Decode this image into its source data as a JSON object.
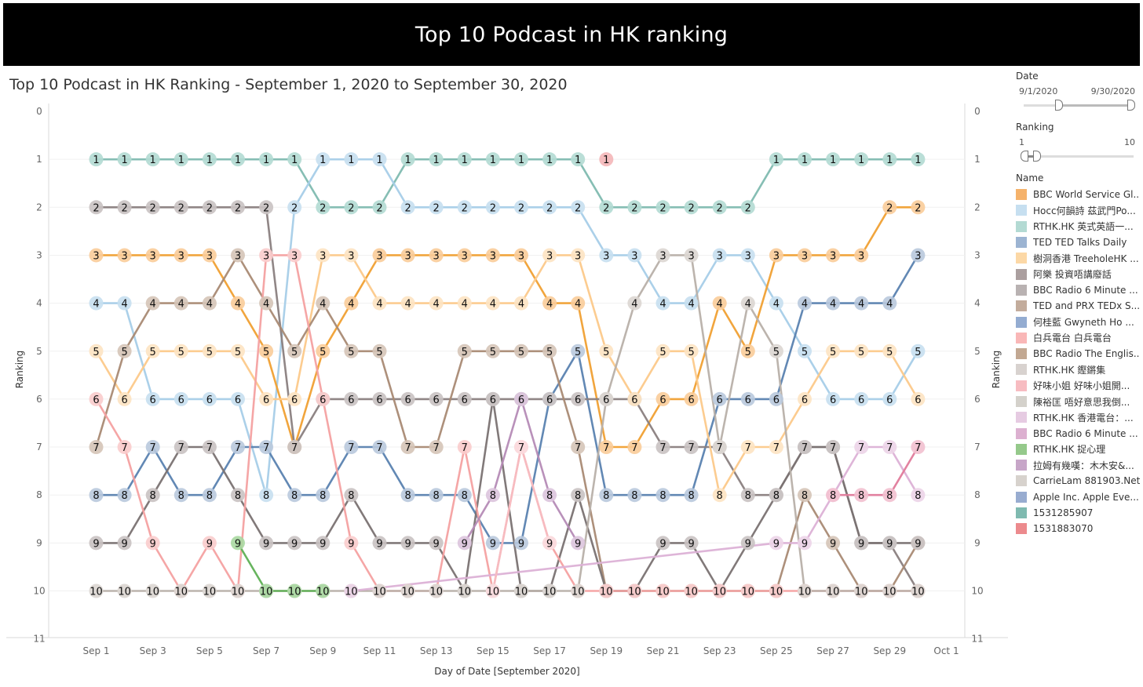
{
  "banner": {
    "title": "Top 10 Podcast in HK ranking"
  },
  "subtitle": "Top 10 Podcast in HK Ranking - September 1, 2020 to September 30, 2020",
  "filters": {
    "date": {
      "label": "Date",
      "start": "9/1/2020",
      "end": "9/30/2020"
    },
    "ranking": {
      "label": "Ranking",
      "min": "1",
      "max": "10"
    },
    "name_label": "Name"
  },
  "legend": [
    {
      "name": "BBC World Service Gl...",
      "color": "#f5b26b"
    },
    {
      "name": "Hocc何韻詩 茲武門Po...",
      "color": "#c6dff0"
    },
    {
      "name": "RTHK.HK 英式英語一...",
      "color": "#b3dad3"
    },
    {
      "name": "TED TED Talks Daily",
      "color": "#9cb4d2"
    },
    {
      "name": "樹洞香港 TreeholeHK ...",
      "color": "#fcd8a6"
    },
    {
      "name": "阿樂 投資唔講廢話",
      "color": "#ab9f9f"
    },
    {
      "name": "BBC Radio 6 Minute ...",
      "color": "#b9b2b2"
    },
    {
      "name": "TED and PRX TEDx S...",
      "color": "#c3ac9c"
    },
    {
      "name": "何桂藍 Gwyneth Ho ...",
      "color": "#94acd1"
    },
    {
      "name": "白兵電台 白兵電台",
      "color": "#f9b7b7"
    },
    {
      "name": "BBC Radio The Englis...",
      "color": "#c2a892"
    },
    {
      "name": "RTHK.HK 鏗鏘集",
      "color": "#d8d2cf"
    },
    {
      "name": "好味小姐 好味小姐開...",
      "color": "#f7bcc1"
    },
    {
      "name": "陳裕匡 唔好意思我倒...",
      "color": "#d4d1cb"
    },
    {
      "name": "RTHK.HK 香港電台：...",
      "color": "#e6cbe2"
    },
    {
      "name": "BBC Radio 6 Minute ...",
      "color": "#dcb0d0"
    },
    {
      "name": "RTHK.HK 捉心理",
      "color": "#95c98b"
    },
    {
      "name": "拉姆有幾嘆：木木安&...",
      "color": "#c7a6c8"
    },
    {
      "name": "CarrieLam 881903.Net",
      "color": "#d7d2cd"
    },
    {
      "name": "Apple Inc. Apple Eve...",
      "color": "#98acd0"
    },
    {
      "name": "1531285907",
      "color": "#7fbab0"
    },
    {
      "name": "1531883070",
      "color": "#ec8a8d"
    }
  ],
  "chart_data": {
    "type": "line",
    "title": "Top 10 Podcast in HK Ranking - September 1, 2020 to September 30, 2020",
    "xlabel": "Day of Date [September 2020]",
    "ylabel": "Ranking",
    "ylim": [
      0,
      11
    ],
    "y_reversed": true,
    "y_ticks": [
      0,
      1,
      2,
      3,
      4,
      5,
      6,
      7,
      8,
      9,
      10,
      11
    ],
    "x_ticks": [
      "Sep 1",
      "Sep 3",
      "Sep 5",
      "Sep 7",
      "Sep 9",
      "Sep 11",
      "Sep 13",
      "Sep 15",
      "Sep 17",
      "Sep 19",
      "Sep 21",
      "Sep 23",
      "Sep 25",
      "Sep 27",
      "Sep 29",
      "Oct 1"
    ],
    "x_domain_days": [
      1,
      31
    ],
    "series": [
      {
        "name": "RTHK.HK 英式英語一...",
        "color": "#7fbab0",
        "dot": "#b3dad3",
        "days": [
          1,
          2,
          3,
          4,
          5,
          6,
          7,
          8,
          9,
          10,
          11,
          12,
          13,
          14,
          15,
          16,
          17,
          18,
          19,
          20,
          21,
          22,
          23,
          24,
          25,
          26,
          27,
          28,
          29,
          30
        ],
        "ranks": [
          1,
          1,
          1,
          1,
          1,
          1,
          1,
          1,
          2,
          2,
          2,
          1,
          1,
          1,
          1,
          1,
          1,
          1,
          2,
          2,
          2,
          2,
          2,
          2,
          1,
          1,
          1,
          1,
          1,
          1
        ]
      },
      {
        "name": "Hocc何韻詩 茲武門Po...",
        "color": "#a6cde8",
        "dot": "#c6dff0",
        "days": [
          1,
          2,
          3,
          4,
          5,
          6,
          7,
          8,
          9,
          10,
          11,
          12,
          13,
          14,
          15,
          16,
          17,
          18,
          19,
          20,
          21,
          22,
          23,
          24,
          25,
          26,
          27,
          28,
          29,
          30
        ],
        "ranks": [
          4,
          4,
          6,
          6,
          6,
          6,
          8,
          2,
          1,
          1,
          1,
          2,
          2,
          2,
          2,
          2,
          2,
          2,
          3,
          3,
          4,
          4,
          3,
          3,
          4,
          5,
          6,
          6,
          6,
          5
        ]
      },
      {
        "name": "BBC World Service Gl...",
        "color": "#f0a033",
        "dot": "#f9cc99",
        "days": [
          1,
          2,
          3,
          4,
          5,
          6,
          7,
          8,
          9,
          10,
          11,
          12,
          13,
          14,
          15,
          16,
          17,
          18,
          19,
          20,
          21,
          22,
          23,
          24,
          25,
          26,
          27,
          28,
          29,
          30
        ],
        "ranks": [
          3,
          3,
          3,
          3,
          3,
          4,
          5,
          7,
          5,
          4,
          3,
          3,
          3,
          3,
          3,
          3,
          4,
          4,
          7,
          7,
          6,
          6,
          4,
          5,
          3,
          3,
          3,
          3,
          2,
          2
        ]
      },
      {
        "name": "TED TED Talks Daily",
        "color": "#5a82b0",
        "dot": "#b9c9dd",
        "days": [
          1,
          2,
          3,
          4,
          5,
          6,
          7,
          8,
          9,
          10,
          11,
          12,
          13,
          14,
          15,
          16,
          17,
          18,
          19,
          20,
          21,
          22,
          23,
          24,
          25,
          26,
          27,
          28,
          29,
          30
        ],
        "ranks": [
          8,
          8,
          7,
          8,
          8,
          7,
          7,
          8,
          8,
          7,
          7,
          8,
          8,
          8,
          9,
          9,
          6,
          5,
          8,
          8,
          8,
          8,
          6,
          6,
          6,
          4,
          4,
          4,
          4,
          3
        ]
      },
      {
        "name": "阿樂 投資唔講廢話",
        "color": "#8a7f7f",
        "dot": "#c9c2c2",
        "days": [
          1,
          2,
          3,
          4,
          5,
          6,
          7,
          8,
          9,
          10,
          11,
          12,
          13,
          14,
          15,
          16,
          17,
          18,
          19,
          20,
          21,
          22,
          23,
          24,
          25,
          26,
          27,
          28,
          29,
          30
        ],
        "ranks": [
          2,
          2,
          2,
          2,
          2,
          2,
          2,
          7,
          6,
          6,
          6,
          6,
          6,
          6,
          6,
          6,
          6,
          6,
          6,
          6,
          7,
          7,
          7,
          8,
          8,
          7,
          7,
          9,
          9,
          10
        ]
      },
      {
        "name": "樹洞香港 TreeholeHK ...",
        "color": "#fcc98a",
        "dot": "#fde3c2",
        "days": [
          1,
          2,
          3,
          4,
          5,
          6,
          7,
          8,
          9,
          10,
          11,
          12,
          13,
          14,
          15,
          16,
          17,
          18,
          19,
          20,
          21,
          22,
          23,
          24,
          25,
          26,
          27,
          28,
          29,
          30
        ],
        "ranks": [
          5,
          6,
          5,
          5,
          5,
          5,
          6,
          6,
          3,
          3,
          4,
          4,
          4,
          4,
          4,
          4,
          3,
          3,
          5,
          6,
          5,
          5,
          8,
          7,
          7,
          6,
          5,
          5,
          5,
          6
        ]
      },
      {
        "name": "TED and PRX TEDx S...",
        "color": "#a98a74",
        "dot": "#d5c4b7",
        "days": [
          1,
          2,
          3,
          4,
          5,
          6,
          7,
          8,
          9,
          10,
          11,
          12,
          13,
          14,
          15,
          16,
          17,
          18,
          19,
          20,
          21,
          22,
          23,
          24,
          25,
          26,
          27,
          28,
          29,
          30
        ],
        "ranks": [
          7,
          5,
          4,
          4,
          4,
          3,
          4,
          5,
          4,
          5,
          5,
          7,
          7,
          5,
          5,
          5,
          5,
          7,
          10,
          10,
          10,
          10,
          10,
          10,
          10,
          8,
          9,
          10,
          10,
          9
        ]
      },
      {
        "name": "BBC Radio 6 Minute ...",
        "color": "#7a7272",
        "dot": "#c9c2c2",
        "days": [
          1,
          2,
          3,
          4,
          5,
          6,
          7,
          8,
          9,
          10,
          11,
          12,
          13,
          14,
          15,
          16,
          17,
          18,
          19,
          20,
          21,
          22,
          23,
          24,
          25,
          26,
          27,
          28,
          29,
          30
        ],
        "ranks": [
          9,
          9,
          8,
          7,
          7,
          8,
          9,
          9,
          9,
          8,
          9,
          9,
          9,
          10,
          6,
          10,
          10,
          8,
          10,
          10,
          9,
          9,
          10,
          9,
          8,
          7,
          7,
          9,
          9,
          9
        ]
      },
      {
        "name": "白兵電台 白兵電台",
        "color": "#f4a1a1",
        "dot": "#f9cccc",
        "days": [
          1,
          2,
          3,
          4,
          5,
          6,
          7,
          8,
          9,
          10,
          11,
          12,
          13,
          14,
          15,
          16,
          17,
          18,
          19,
          20,
          21,
          22,
          23,
          24,
          25,
          26,
          27,
          28,
          29,
          30
        ],
        "ranks": [
          6,
          7,
          9,
          10,
          9,
          10,
          3,
          3,
          6,
          9,
          10,
          10,
          10,
          7,
          10,
          7,
          9,
          10,
          10,
          10,
          10,
          10,
          10,
          10,
          10,
          10,
          10,
          10,
          10,
          10
        ]
      },
      {
        "name": "RTHK.HK 鏗鏘集",
        "color": "#b8b0a9",
        "dot": "#dcd6d1",
        "days": [
          1,
          2,
          3,
          4,
          5,
          6,
          7,
          8,
          9,
          10,
          11,
          12,
          13,
          14,
          15,
          16,
          17,
          18,
          19,
          20,
          21,
          22,
          23,
          24,
          25,
          26,
          27,
          28,
          29,
          30
        ],
        "ranks": [
          10,
          10,
          10,
          10,
          10,
          10,
          10,
          10,
          10,
          10,
          10,
          10,
          10,
          10,
          10,
          10,
          10,
          10,
          6,
          4,
          3,
          3,
          7,
          4,
          5,
          10,
          10,
          10,
          10,
          10
        ]
      },
      {
        "name": "RTHK.HK 捉心理",
        "color": "#5fb055",
        "dot": "#a9d8a1",
        "days": [
          6,
          7,
          8,
          9
        ],
        "ranks": [
          9,
          10,
          10,
          10
        ]
      },
      {
        "name": "拉姆有幾嘆：木木安&...",
        "color": "#b58bb6",
        "dot": "#dcc4dd",
        "days": [
          14,
          15,
          16,
          17,
          18
        ],
        "ranks": [
          9,
          8,
          6,
          8,
          9
        ]
      },
      {
        "name": "RTHK.HK 香港電台：...",
        "color": "#dcb1d6",
        "dot": "#ecd4e8",
        "days": [
          10,
          25,
          26,
          27,
          28,
          29,
          30
        ],
        "ranks": [
          10,
          9,
          9,
          8,
          7,
          7,
          8
        ]
      },
      {
        "name": "BBC Radio 6 Minute ...",
        "color": "#e07b9b",
        "dot": "#f2c0cf",
        "days": [
          27,
          28,
          29,
          30
        ],
        "ranks": [
          8,
          8,
          8,
          7
        ]
      },
      {
        "name": "好味小姐 好味小姐開...",
        "color": "#f7bcc1",
        "dot": "#fbdcdf",
        "days": [
          15,
          16,
          17
        ],
        "ranks": [
          10,
          7,
          9
        ]
      },
      {
        "name": "1531883070",
        "color": "#ec8a8d",
        "dot": "#f4b6b8",
        "days": [
          19
        ],
        "ranks": [
          1
        ]
      }
    ]
  }
}
